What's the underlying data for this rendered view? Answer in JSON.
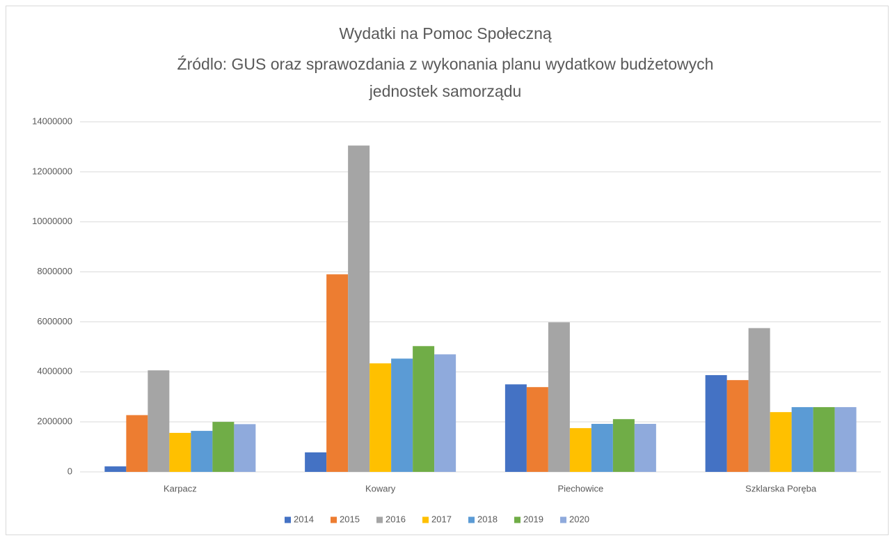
{
  "chart_data": {
    "type": "bar",
    "title": [
      "Wydatki na Pomoc Społeczną",
      "Źródlo: GUS oraz sprawozdania z wykonania planu wydatkow budżetowych",
      "jednostek samorządu"
    ],
    "categories": [
      "Karpacz",
      "Kowary",
      "Piechowice",
      "Szklarska Poręba"
    ],
    "series": [
      {
        "name": "2014",
        "color": "#4472c4",
        "values": [
          220000,
          780000,
          3500000,
          3870000
        ]
      },
      {
        "name": "2015",
        "color": "#ed7d31",
        "values": [
          2270000,
          7900000,
          3390000,
          3670000
        ]
      },
      {
        "name": "2016",
        "color": "#a5a5a5",
        "values": [
          4060000,
          13050000,
          5980000,
          5750000
        ]
      },
      {
        "name": "2017",
        "color": "#ffc000",
        "values": [
          1560000,
          4340000,
          1750000,
          2390000
        ]
      },
      {
        "name": "2018",
        "color": "#5b9bd5",
        "values": [
          1640000,
          4530000,
          1920000,
          2590000
        ]
      },
      {
        "name": "2019",
        "color": "#70ad47",
        "values": [
          2000000,
          5030000,
          2110000,
          2590000
        ]
      },
      {
        "name": "2020",
        "color": "#8faadc",
        "values": [
          1910000,
          4700000,
          1920000,
          2590000
        ]
      }
    ],
    "ylim": [
      0,
      14000000
    ],
    "yticks": [
      0,
      2000000,
      4000000,
      6000000,
      8000000,
      10000000,
      12000000,
      14000000
    ],
    "grid": true,
    "legend": "bottom"
  }
}
